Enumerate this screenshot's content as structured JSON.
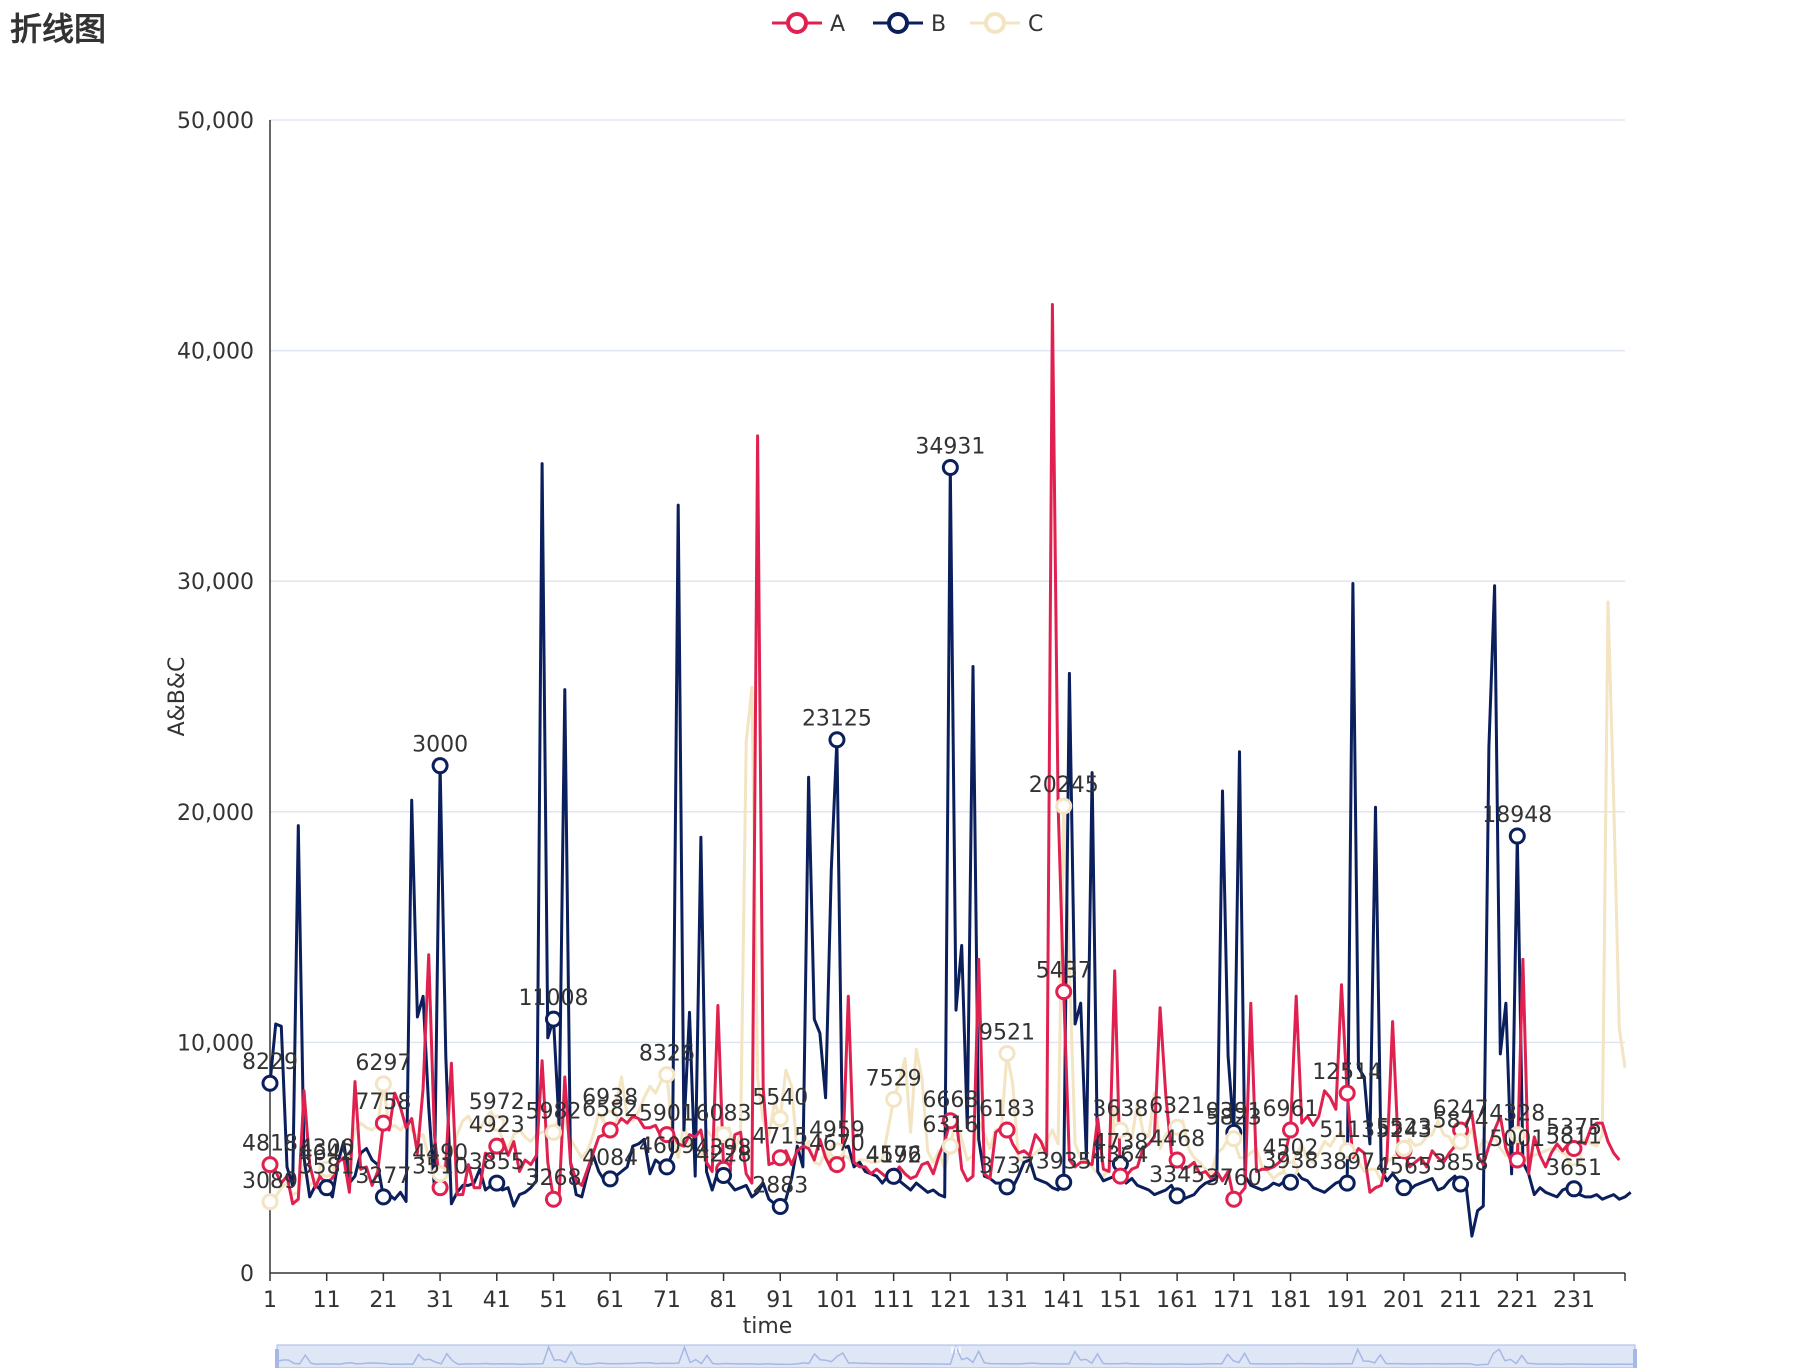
{
  "title": "折线图",
  "colors": {
    "A": "#e0214f",
    "B": "#0b1f5c",
    "C": "#f3e4c2",
    "grid": "#e0e6f1",
    "axis": "#333333",
    "zoom_fill": "#dfe6f5",
    "zoom_border": "#a6b8e6"
  },
  "chart_data": {
    "type": "line",
    "xlabel": "time",
    "ylabel": "A&B&C",
    "ylim": [
      0,
      50000
    ],
    "yticks": [
      0,
      10000,
      20000,
      30000,
      40000,
      50000
    ],
    "ytick_labels": [
      "0",
      "10,000",
      "20,000",
      "30,000",
      "40,000",
      "50,000"
    ],
    "xticks": [
      1,
      11,
      21,
      31,
      41,
      51,
      61,
      71,
      81,
      91,
      101,
      111,
      121,
      131,
      141,
      151,
      161,
      171,
      181,
      191,
      201,
      211,
      221,
      231
    ],
    "x_range": [
      1,
      240
    ],
    "legend": {
      "position": "top-center",
      "entries": [
        "A",
        "B",
        "C"
      ]
    },
    "grid": true,
    "data_zoom": true,
    "series": [
      {
        "name": "A",
        "values": [
          4700,
          4400,
          3900,
          4200,
          3000,
          3200,
          7900,
          4700,
          3700,
          4300,
          4300,
          4300,
          4800,
          5000,
          3500,
          8300,
          4500,
          4600,
          3800,
          4400,
          6500,
          6200,
          7800,
          7200,
          6300,
          6700,
          5200,
          8000,
          13800,
          6000,
          3700,
          4700,
          9100,
          3400,
          3400,
          4700,
          3700,
          3700,
          5200,
          5000,
          5500,
          5800,
          5100,
          5700,
          4400,
          4900,
          4700,
          5100,
          9200,
          4800,
          3200,
          3300,
          8500,
          4800,
          4000,
          3800,
          4500,
          5200,
          5900,
          6000,
          6200,
          6400,
          6700,
          6500,
          6800,
          6700,
          6300,
          6300,
          6400,
          5900,
          6000,
          6100,
          5600,
          5500,
          6000,
          5900,
          6200,
          4800,
          4400,
          11600,
          4500,
          4300,
          6000,
          6100,
          4300,
          3900,
          36300,
          8000,
          4700,
          4800,
          5000,
          5300,
          4700,
          5300,
          5500,
          5400,
          4900,
          5800,
          5000,
          4500,
          4700,
          4800,
          12000,
          4800,
          4600,
          4600,
          4300,
          4500,
          4300,
          4100,
          4200,
          4600,
          4300,
          4100,
          4200,
          4700,
          4800,
          4300,
          5100,
          5700,
          6600,
          6800,
          4500,
          4000,
          4200,
          13600,
          4300,
          4100,
          6100,
          6300,
          6200,
          5600,
          5200,
          5300,
          5100,
          6000,
          5700,
          5100,
          42000,
          20300,
          12200,
          4900,
          4600,
          4800,
          4800,
          4700,
          6700,
          4500,
          4400,
          13100,
          4200,
          4200,
          4500,
          4600,
          5400,
          5600,
          5900,
          11500,
          7700,
          5200,
          4900,
          4500,
          4600,
          4800,
          4300,
          4400,
          4100,
          4400,
          4000,
          4400,
          3200,
          3400,
          3700,
          11700,
          4400,
          4500,
          4500,
          4600,
          4800,
          5100,
          6200,
          12000,
          6500,
          6800,
          6400,
          6800,
          7900,
          7600,
          7100,
          12500,
          7800,
          5000,
          5400,
          5200,
          3500,
          3700,
          3800,
          4900,
          10900,
          5500,
          5300,
          4600,
          4800,
          5000,
          4600,
          5300,
          5000,
          4800,
          5200,
          5500,
          6200,
          6500,
          6900,
          5100,
          4700,
          5500,
          6200,
          6800,
          5400,
          4800,
          4900,
          13600,
          4300,
          5900,
          5100,
          4600,
          5200,
          5600,
          5300,
          5600,
          5400,
          5700,
          5600,
          6300,
          6500,
          6500,
          5700,
          5200,
          4900
        ]
      },
      {
        "name": "B",
        "values": [
          8229,
          10800,
          10700,
          4600,
          3800,
          19400,
          5000,
          3300,
          3800,
          3600,
          3700,
          3300,
          4800,
          5700,
          3900,
          4200,
          5200,
          5400,
          4900,
          4700,
          3300,
          3400,
          3200,
          3500,
          3100,
          20500,
          11100,
          12000,
          7200,
          3700,
          22000,
          9400,
          3000,
          3500,
          3800,
          3800,
          3900,
          4500,
          3600,
          3800,
          3900,
          3600,
          3700,
          2900,
          3400,
          3500,
          3700,
          4000,
          35100,
          10200,
          11008,
          6400,
          25300,
          4800,
          3400,
          3300,
          4300,
          5100,
          4400,
          4000,
          4084,
          4200,
          4400,
          4600,
          5500,
          5600,
          5800,
          4300,
          4900,
          4700,
          4600,
          5200,
          33300,
          6200,
          11300,
          4200,
          18900,
          4400,
          3600,
          4400,
          4228,
          3900,
          3600,
          3700,
          3800,
          3300,
          3500,
          3900,
          3200,
          3000,
          2883,
          3200,
          4100,
          5500,
          4600,
          21500,
          11000,
          10400,
          7600,
          17500,
          23125,
          5400,
          5500,
          4600,
          4800,
          4400,
          4300,
          4200,
          3900,
          4200,
          4192,
          4000,
          3800,
          3600,
          3900,
          3700,
          3500,
          3600,
          3400,
          3300,
          34931,
          11400,
          14200,
          6300,
          26300,
          5800,
          4200,
          4100,
          3900,
          3900,
          3737,
          3700,
          4200,
          4800,
          4900,
          4100,
          4000,
          3900,
          3700,
          3600,
          3935,
          26000,
          10800,
          11700,
          5000,
          21700,
          4400,
          4000,
          4100,
          4200,
          4738,
          3900,
          4100,
          3800,
          3700,
          3600,
          3400,
          3500,
          3600,
          3800,
          3345,
          3200,
          3300,
          3400,
          3700,
          3900,
          4000,
          4100,
          20900,
          9391,
          6100,
          22600,
          4200,
          3800,
          3700,
          3600,
          3700,
          3900,
          3800,
          4000,
          3938,
          4400,
          4100,
          4000,
          3700,
          3600,
          3500,
          3700,
          3900,
          4000,
          3897,
          29900,
          8900,
          8500,
          5600,
          20200,
          4500,
          4000,
          4300,
          4000,
          3700,
          3600,
          3800,
          3900,
          4000,
          4100,
          3600,
          3700,
          4000,
          4200,
          3858,
          3700,
          1600,
          2700,
          2900,
          22800,
          29800,
          9500,
          11700,
          4300,
          18948,
          4800,
          4300,
          3400,
          3700,
          3500,
          3400,
          3300,
          3600,
          3700,
          3651,
          3400,
          3300,
          3300,
          3400,
          3200,
          3300,
          3400,
          3200,
          3300,
          3500
        ]
      },
      {
        "name": "C",
        "values": [
          3089,
          3300,
          3700,
          3900,
          3400,
          3500,
          4700,
          3800,
          4000,
          4300,
          4500,
          5000,
          5400,
          4900,
          5100,
          6200,
          6500,
          6300,
          6200,
          6400,
          8200,
          6297,
          6400,
          6200,
          6500,
          6200,
          5900,
          6000,
          5000,
          4100,
          4300,
          4800,
          5200,
          6000,
          6600,
          6800,
          6300,
          6200,
          6700,
          7000,
          6500,
          5800,
          5400,
          6000,
          6200,
          5900,
          5700,
          6000,
          6100,
          6200,
          6100,
          6800,
          6600,
          5800,
          5400,
          5000,
          5300,
          6000,
          6938,
          6500,
          6700,
          7300,
          8500,
          6800,
          6600,
          7000,
          7600,
          8100,
          7800,
          8326,
          8600,
          6000,
          5000,
          6400,
          5600,
          5200,
          5000,
          6200,
          5900,
          6300,
          6000,
          6300,
          5300,
          6083,
          23000,
          25400,
          8500,
          6600,
          6000,
          7400,
          6700,
          8800,
          8100,
          5200,
          5400,
          5700,
          4800,
          4700,
          5300,
          4800,
          5300,
          5100,
          5000,
          4700,
          4900,
          4900,
          4800,
          4800,
          4900,
          6200,
          7529,
          8300,
          9300,
          6100,
          9700,
          8400,
          5300,
          4800,
          5300,
          4500,
          5500,
          6700,
          5800,
          4900,
          5100,
          6600,
          6000,
          5400,
          6200,
          6300,
          9521,
          8200,
          5000,
          4800,
          5000,
          5200,
          5400,
          5700,
          6200,
          5600,
          20245,
          13300,
          5600,
          5000,
          4800,
          4600,
          4300,
          4200,
          4500,
          7100,
          6200,
          6200,
          5800,
          7400,
          6100,
          5900,
          7800,
          5400,
          6000,
          6200,
          6321,
          6600,
          5400,
          5000,
          4800,
          4500,
          4300,
          5200,
          5400,
          5800,
          5823,
          5000,
          5000,
          5200,
          5400,
          4600,
          4400,
          4100,
          4300,
          4400,
          4502,
          5100,
          5600,
          4900,
          4800,
          5200,
          5700,
          5500,
          5900,
          6100,
          5300,
          5200,
          4800,
          4400,
          4500,
          4500,
          4000,
          4800,
          5000,
          5200,
          5400,
          5800,
          5523,
          5600,
          5900,
          6000,
          6600,
          6000,
          5900,
          5400,
          5700,
          5800,
          6247,
          5200,
          5800,
          5600,
          5900,
          5400,
          5100,
          5600,
          6000,
          4800,
          5100,
          5100,
          5200,
          5300,
          5400,
          5375,
          5200,
          5100,
          5000,
          5600,
          5811,
          5600,
          5500,
          6000,
          29100,
          20500,
          10600,
          8900
        ]
      }
    ],
    "point_labels": [
      {
        "series": "B",
        "x": 1,
        "text": "8229"
      },
      {
        "series": "A",
        "x": 1,
        "text": "4818"
      },
      {
        "series": "C",
        "x": 1,
        "text": "3089"
      },
      {
        "series": "A",
        "x": 11,
        "text": "4642"
      },
      {
        "series": "C",
        "x": 11,
        "text": "4300"
      },
      {
        "series": "B",
        "x": 11,
        "text": "3581"
      },
      {
        "series": "A",
        "x": 21,
        "text": "7758"
      },
      {
        "series": "C",
        "x": 21,
        "text": "6297"
      },
      {
        "series": "B",
        "x": 21,
        "text": "3277"
      },
      {
        "series": "A",
        "x": 31,
        "text": "3510"
      },
      {
        "series": "C",
        "x": 31,
        "text": "4490"
      },
      {
        "series": "B",
        "x": 31,
        "text": "3000"
      },
      {
        "series": "C",
        "x": 41,
        "text": "5972"
      },
      {
        "series": "A",
        "x": 41,
        "text": "4923"
      },
      {
        "series": "B",
        "x": 41,
        "text": "3855"
      },
      {
        "series": "C",
        "x": 51,
        "text": "5982"
      },
      {
        "series": "B",
        "x": 51,
        "text": "11008"
      },
      {
        "series": "A",
        "x": 51,
        "text": "3268"
      },
      {
        "series": "C",
        "x": 61,
        "text": "6938"
      },
      {
        "series": "A",
        "x": 61,
        "text": "6582"
      },
      {
        "series": "B",
        "x": 61,
        "text": "4084"
      },
      {
        "series": "C",
        "x": 71,
        "text": "8326"
      },
      {
        "series": "A",
        "x": 71,
        "text": "5901"
      },
      {
        "series": "B",
        "x": 71,
        "text": "4609"
      },
      {
        "series": "C",
        "x": 81,
        "text": "6083"
      },
      {
        "series": "A",
        "x": 81,
        "text": "4398"
      },
      {
        "series": "B",
        "x": 81,
        "text": "4228"
      },
      {
        "series": "C",
        "x": 91,
        "text": "5540"
      },
      {
        "series": "A",
        "x": 91,
        "text": "4715"
      },
      {
        "series": "B",
        "x": 91,
        "text": "2883"
      },
      {
        "series": "B",
        "x": 101,
        "text": "23125"
      },
      {
        "series": "C",
        "x": 101,
        "text": "4959"
      },
      {
        "series": "A",
        "x": 101,
        "text": "4670"
      },
      {
        "series": "C",
        "x": 111,
        "text": "7529"
      },
      {
        "series": "A",
        "x": 111,
        "text": "4576"
      },
      {
        "series": "B",
        "x": 111,
        "text": "4192"
      },
      {
        "series": "B",
        "x": 121,
        "text": "34931"
      },
      {
        "series": "A",
        "x": 121,
        "text": "6668"
      },
      {
        "series": "C",
        "x": 121,
        "text": "6316"
      },
      {
        "series": "C",
        "x": 131,
        "text": "9521"
      },
      {
        "series": "A",
        "x": 131,
        "text": "6183"
      },
      {
        "series": "B",
        "x": 131,
        "text": "3737"
      },
      {
        "series": "C",
        "x": 141,
        "text": "20245"
      },
      {
        "series": "A",
        "x": 141,
        "text": "5437"
      },
      {
        "series": "B",
        "x": 141,
        "text": "3935"
      },
      {
        "series": "B",
        "x": 151,
        "text": "4738"
      },
      {
        "series": "A",
        "x": 151,
        "text": "4364"
      },
      {
        "series": "C",
        "x": 151,
        "text": "3638"
      },
      {
        "series": "C",
        "x": 161,
        "text": "6321"
      },
      {
        "series": "A",
        "x": 161,
        "text": "4468"
      },
      {
        "series": "B",
        "x": 161,
        "text": "3345"
      },
      {
        "series": "B",
        "x": 171,
        "text": "9391"
      },
      {
        "series": "C",
        "x": 171,
        "text": "5823"
      },
      {
        "series": "A",
        "x": 171,
        "text": "3760"
      },
      {
        "series": "A",
        "x": 181,
        "text": "6961"
      },
      {
        "series": "C",
        "x": 181,
        "text": "4502"
      },
      {
        "series": "B",
        "x": 181,
        "text": "3938"
      },
      {
        "series": "A",
        "x": 191,
        "text": "12514"
      },
      {
        "series": "C",
        "x": 191,
        "text": "5113"
      },
      {
        "series": "B",
        "x": 191,
        "text": "3897"
      },
      {
        "series": "A",
        "x": 201,
        "text": "5243"
      },
      {
        "series": "C",
        "x": 201,
        "text": "5523"
      },
      {
        "series": "B",
        "x": 201,
        "text": "4565"
      },
      {
        "series": "A",
        "x": 211,
        "text": "6247"
      },
      {
        "series": "C",
        "x": 211,
        "text": "5874"
      },
      {
        "series": "B",
        "x": 211,
        "text": "3858"
      },
      {
        "series": "B",
        "x": 221,
        "text": "18948"
      },
      {
        "series": "A",
        "x": 221,
        "text": "5001"
      },
      {
        "series": "C",
        "x": 221,
        "text": "4328"
      },
      {
        "series": "C",
        "x": 231,
        "text": "5811"
      },
      {
        "series": "A",
        "x": 231,
        "text": "5375"
      },
      {
        "series": "B",
        "x": 231,
        "text": "3651"
      }
    ]
  }
}
